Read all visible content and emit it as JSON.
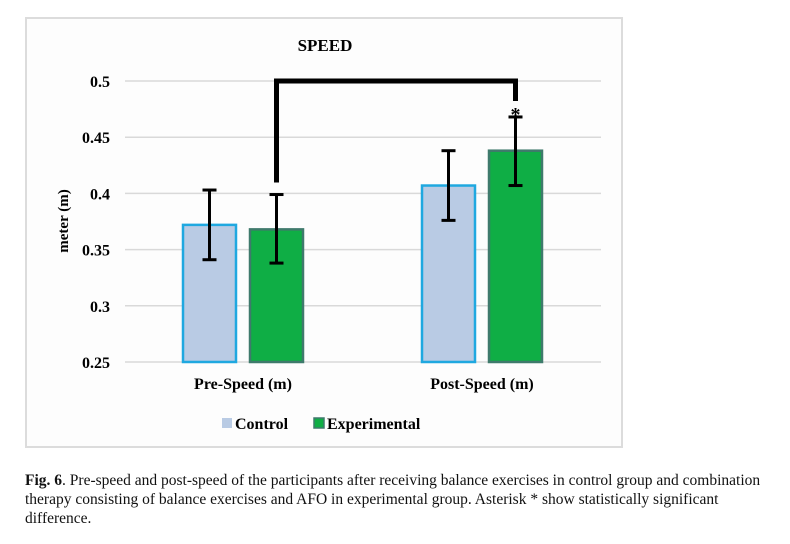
{
  "chart_data": {
    "type": "bar",
    "title": "SPEED",
    "xlabel": "",
    "ylabel": "meter (m)",
    "ylim": [
      0.25,
      0.5
    ],
    "yticks": [
      0.25,
      0.3,
      0.35,
      0.4,
      0.45,
      0.5
    ],
    "ytick_labels": [
      "0.25",
      "0.3",
      "0.35",
      "0.4",
      "0.45",
      "0.5"
    ],
    "grid": true,
    "legend_position": "bottom",
    "categories": [
      "Pre-Speed (m)",
      "Post-Speed (m)"
    ],
    "series": [
      {
        "name": "Control",
        "values": [
          0.372,
          0.407
        ],
        "error_low": [
          0.341,
          0.376
        ],
        "error_high": [
          0.403,
          0.438
        ],
        "fill": "#b9cbe4",
        "stroke": "#1fa8e0"
      },
      {
        "name": "Experimental",
        "values": [
          0.368,
          0.438
        ],
        "error_low": [
          0.338,
          0.407
        ],
        "error_high": [
          0.399,
          0.468
        ],
        "fill": "#0fae45",
        "stroke": "#3f7a6c"
      }
    ],
    "annotations": [
      {
        "type": "significance-bracket",
        "from": "Experimental / Pre-Speed (m)",
        "to": "Experimental / Post-Speed (m)",
        "level": 0.5,
        "label": "*"
      }
    ]
  },
  "caption": {
    "label": "Fig. 6",
    "text": ".  Pre-speed and post-speed of the participants after receiving balance exercises in control group and combination therapy consisting of balance exercises and AFO in experimental group. Asterisk * show statistically significant difference."
  }
}
